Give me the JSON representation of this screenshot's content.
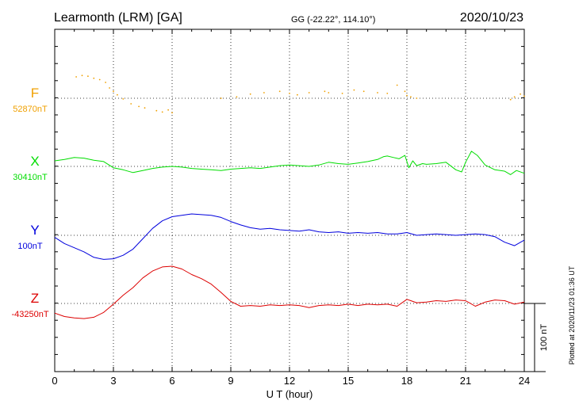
{
  "header": {
    "station": "Learmonth (LRM)  [GA]",
    "coords": "GG (-22.22°, 114.10°)",
    "date": "2020/10/23"
  },
  "side_note": "Plotted at 2020/11/23 01:36 UT",
  "scale_label": "100 nT",
  "colors": {
    "F": "#f0a000",
    "X": "#00dd00",
    "Y": "#0000dd",
    "Z": "#dd0000",
    "axis": "#000000"
  },
  "chart_data": {
    "type": "line",
    "xlabel": "U T (hour)",
    "xlim": [
      0,
      24
    ],
    "xticks": [
      "0",
      "3",
      "6",
      "9",
      "12",
      "15",
      "18",
      "21",
      "24"
    ],
    "grid": true,
    "scale_bar_nT": 100,
    "series": [
      {
        "name": "F",
        "baseline": "52870nT",
        "base_value": 52870,
        "style": "dots",
        "x": [
          1.1,
          1.4,
          1.7,
          2.0,
          2.3,
          2.6,
          2.8,
          3.0,
          3.2,
          3.5,
          3.9,
          4.3,
          4.6,
          5.2,
          5.5,
          5.8,
          6.0,
          8.5,
          9.3,
          10.0,
          10.7,
          11.5,
          12.0,
          12.4,
          13.0,
          13.8,
          14.0,
          14.7,
          15.3,
          15.8,
          16.5,
          17.0,
          17.5,
          17.9,
          18.0,
          18.2,
          18.5,
          23.3,
          23.5,
          23.8,
          24.0
        ],
        "values": [
          52901,
          52903,
          52902,
          52899,
          52897,
          52893,
          52885,
          52880,
          52875,
          52869,
          52862,
          52858,
          52856,
          52852,
          52850,
          52853,
          52849,
          52870,
          52872,
          52876,
          52878,
          52880,
          52877,
          52875,
          52878,
          52880,
          52878,
          52877,
          52882,
          52880,
          52878,
          52877,
          52889,
          52880,
          52874,
          52872,
          52870,
          52868,
          52872,
          52876,
          52873
        ]
      },
      {
        "name": "X",
        "baseline": "30410nT",
        "base_value": 30410,
        "x": [
          0,
          0.5,
          1.0,
          1.5,
          2.0,
          2.5,
          3.0,
          3.5,
          4.0,
          4.5,
          5.0,
          5.5,
          6.0,
          6.5,
          7.0,
          7.5,
          8.0,
          8.5,
          9.0,
          9.5,
          10.0,
          10.5,
          11.0,
          11.5,
          12.0,
          12.5,
          13.0,
          13.5,
          14.0,
          14.5,
          15.0,
          15.5,
          16.0,
          16.5,
          16.8,
          17.0,
          17.3,
          17.6,
          17.9,
          18.1,
          18.3,
          18.5,
          18.8,
          19.0,
          19.5,
          20.0,
          20.5,
          20.8,
          21.0,
          21.3,
          21.6,
          22.0,
          22.5,
          23.0,
          23.3,
          23.6,
          24.0
        ],
        "values": [
          30418,
          30420,
          30423,
          30422,
          30419,
          30417,
          30408,
          30405,
          30401,
          30404,
          30407,
          30409,
          30410,
          30409,
          30407,
          30406,
          30405,
          30404,
          30406,
          30407,
          30408,
          30407,
          30409,
          30411,
          30412,
          30411,
          30410,
          30412,
          30416,
          30414,
          30413,
          30415,
          30417,
          30420,
          30424,
          30425,
          30423,
          30421,
          30426,
          30408,
          30418,
          30411,
          30414,
          30413,
          30414,
          30416,
          30405,
          30402,
          30416,
          30432,
          30426,
          30412,
          30405,
          30403,
          30398,
          30404,
          30400
        ]
      },
      {
        "name": "Y",
        "baseline": "100nT",
        "base_value": 100,
        "x": [
          0,
          0.5,
          1.0,
          1.5,
          2.0,
          2.5,
          3.0,
          3.5,
          4.0,
          4.5,
          5.0,
          5.5,
          6.0,
          6.5,
          7.0,
          7.5,
          8.0,
          8.5,
          9.0,
          9.5,
          10.0,
          10.5,
          11.0,
          11.5,
          12.0,
          12.5,
          13.0,
          13.5,
          14.0,
          14.5,
          15.0,
          15.5,
          16.0,
          16.5,
          17.0,
          17.5,
          18.0,
          18.5,
          19.0,
          19.5,
          20.0,
          20.5,
          21.0,
          21.5,
          22.0,
          22.5,
          23.0,
          23.5,
          24.0
        ],
        "values": [
          97,
          88,
          82,
          76,
          68,
          65,
          66,
          71,
          80,
          95,
          110,
          121,
          127,
          129,
          131,
          130,
          129,
          126,
          120,
          115,
          111,
          109,
          110,
          108,
          107,
          106,
          108,
          105,
          104,
          105,
          103,
          104,
          103,
          104,
          102,
          102,
          104,
          100,
          101,
          102,
          101,
          100,
          101,
          102,
          101,
          98,
          90,
          85,
          93
        ]
      },
      {
        "name": "Z",
        "baseline": "-43250nT",
        "base_value": -43250,
        "x": [
          0,
          0.5,
          1.0,
          1.5,
          2.0,
          2.5,
          3.0,
          3.5,
          4.0,
          4.5,
          5.0,
          5.5,
          6.0,
          6.5,
          7.0,
          7.5,
          8.0,
          8.5,
          9.0,
          9.5,
          10.0,
          10.5,
          11.0,
          11.5,
          12.0,
          12.5,
          13.0,
          13.5,
          14.0,
          14.5,
          15.0,
          15.5,
          16.0,
          16.5,
          17.0,
          17.5,
          18.0,
          18.2,
          18.5,
          19.0,
          19.5,
          20.0,
          20.5,
          21.0,
          21.5,
          22.0,
          22.5,
          23.0,
          23.5,
          24.0
        ],
        "values": [
          -43264,
          -43269,
          -43271,
          -43272,
          -43270,
          -43263,
          -43251,
          -43238,
          -43227,
          -43213,
          -43203,
          -43197,
          -43196,
          -43200,
          -43208,
          -43214,
          -43222,
          -43234,
          -43247,
          -43254,
          -43253,
          -43254,
          -43252,
          -43253,
          -43252,
          -43253,
          -43256,
          -43253,
          -43252,
          -43253,
          -43251,
          -43253,
          -43251,
          -43252,
          -43251,
          -43254,
          -43244,
          -43246,
          -43249,
          -43248,
          -43246,
          -43247,
          -43245,
          -43246,
          -43254,
          -43248,
          -43245,
          -43246,
          -43251,
          -43248
        ]
      }
    ]
  }
}
